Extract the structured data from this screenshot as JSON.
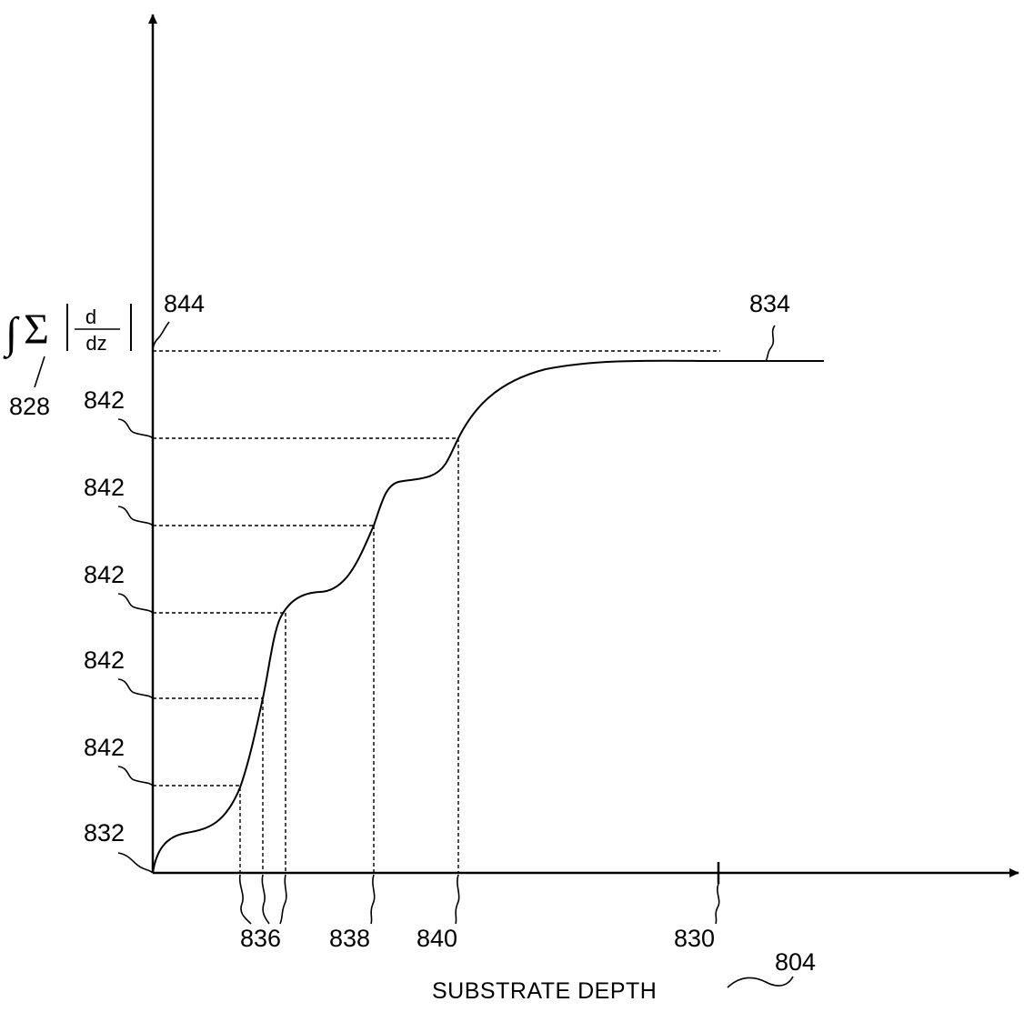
{
  "figure": {
    "y_axis_label": {
      "integral": "∫",
      "sum": "Σ",
      "numerator": "d",
      "denominator": "dz"
    },
    "x_axis_label": "SUBSTRATE DEPTH"
  },
  "refs": {
    "ref_828": "828",
    "ref_844": "844",
    "ref_834": "834",
    "ref_842_a": "842",
    "ref_842_b": "842",
    "ref_842_c": "842",
    "ref_842_d": "842",
    "ref_842_e": "842",
    "ref_832": "832",
    "ref_836": "836",
    "ref_838": "838",
    "ref_840": "840",
    "ref_830": "830",
    "ref_804": "804"
  }
}
